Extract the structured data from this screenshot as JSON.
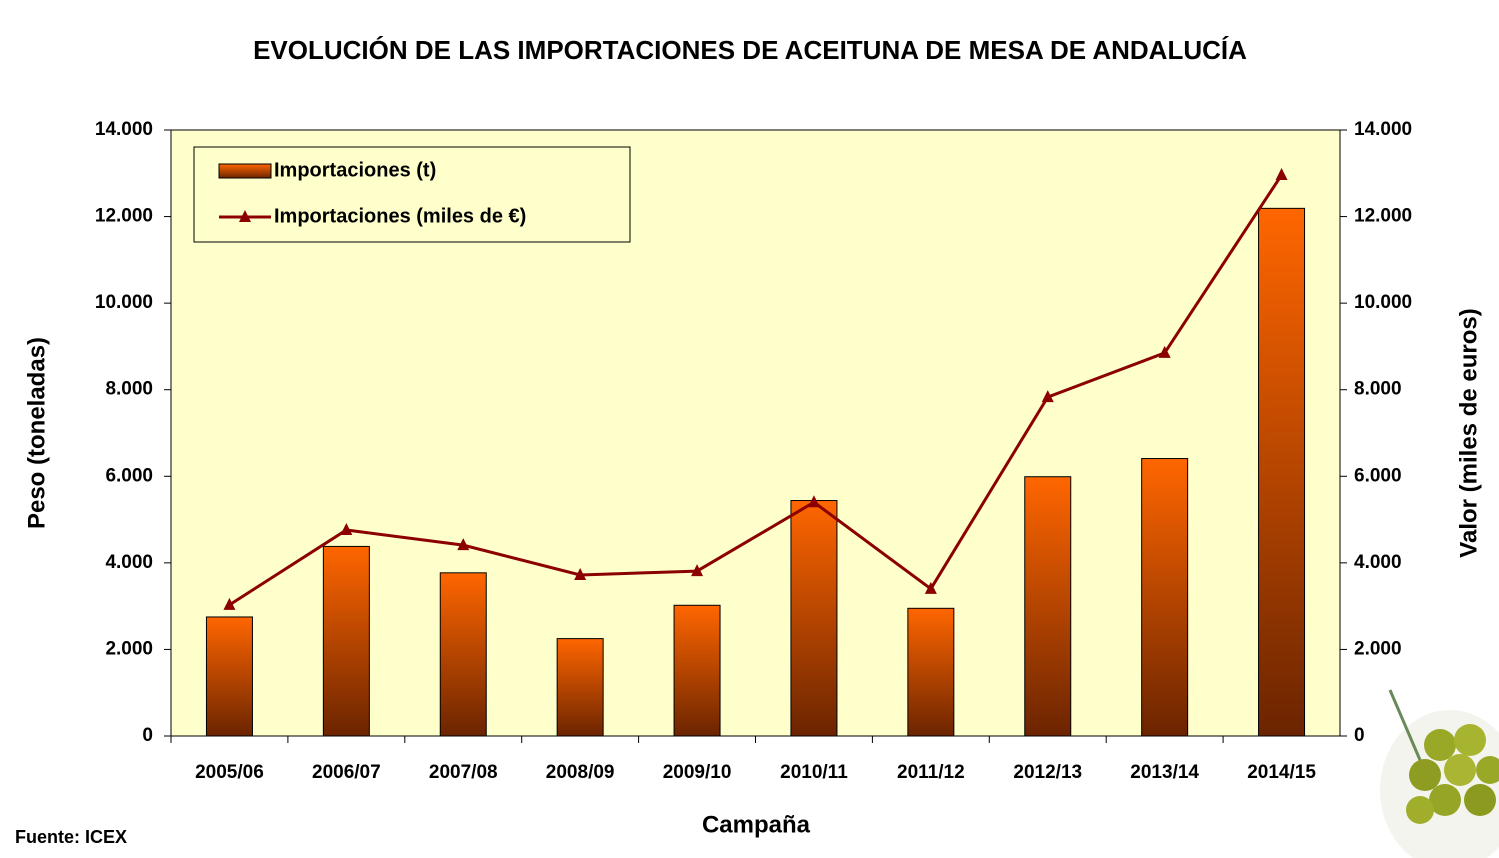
{
  "chart_data": {
    "type": "bar-line",
    "title": "EVOLUCIÓN DE LAS IMPORTACIONES DE ACEITUNA DE MESA DE ANDALUCÍA",
    "x_label": "Campaña",
    "y_label": "Peso (toneladas)",
    "y2_label": "Valor (miles de euros)",
    "note": "Fuente: ICEX",
    "categories": [
      "2005/06",
      "2006/07",
      "2007/08",
      "2008/09",
      "2009/10",
      "2010/11",
      "2011/12",
      "2012/13",
      "2013/14",
      "2014/15"
    ],
    "series": [
      {
        "name": "Importaciones (t)",
        "type": "bar",
        "color": "#ff6600",
        "values": [
          2750,
          4380,
          3770,
          2250,
          3020,
          5440,
          2950,
          5990,
          6410,
          12190
        ]
      },
      {
        "name": "Importaciones (miles de €)",
        "type": "line",
        "axis": "y2",
        "color": "#8b0000",
        "values": [
          3030,
          4760,
          4410,
          3720,
          3810,
          5400,
          3400,
          7830,
          8850,
          12960
        ]
      }
    ],
    "ylim": [
      0,
      14000
    ],
    "yticks": [
      0,
      {
        "value": 2000,
        "label": "2.000"
      },
      {
        "value": 4000,
        "label": "4.000"
      },
      {
        "value": 6000,
        "label": "6.000"
      },
      {
        "value": 8000,
        "label": "8.000"
      },
      {
        "value": 10000,
        "label": "10.000"
      },
      {
        "value": 12000,
        "label": "12.000"
      },
      {
        "value": 14000,
        "label": "14.000"
      }
    ],
    "y2lim": [
      0,
      14000
    ],
    "y2ticks": [
      0,
      {
        "value": 2000,
        "label": "2.000"
      },
      {
        "value": 4000,
        "label": "4.000"
      },
      {
        "value": 6000,
        "label": "6.000"
      },
      {
        "value": 8000,
        "label": "8.000"
      },
      {
        "value": 10000,
        "label": "10.000"
      },
      {
        "value": 12000,
        "label": "12.000"
      },
      {
        "value": 14000,
        "label": "14.000"
      }
    ],
    "plot_background": "#ffffcc",
    "legend": "upper-left"
  }
}
